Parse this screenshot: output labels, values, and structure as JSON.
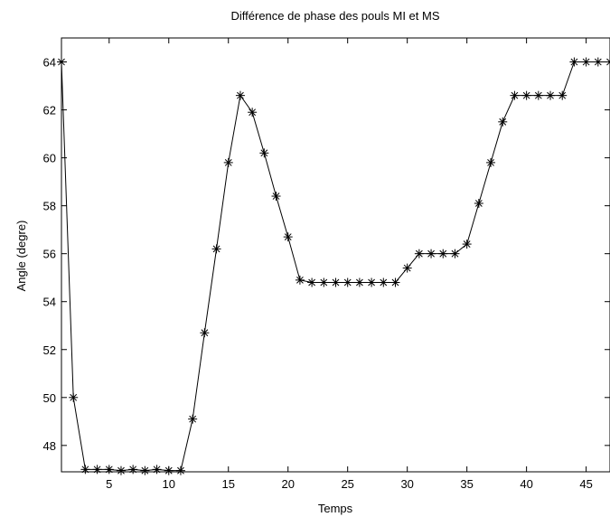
{
  "chart_data": {
    "type": "line",
    "title": "Différence de phase des pouls MI et MS",
    "xlabel": "Temps",
    "ylabel": "Angle (degre)",
    "xlim": [
      1,
      47
    ],
    "ylim": [
      46.9,
      65
    ],
    "xticks": [
      5,
      10,
      15,
      20,
      25,
      30,
      35,
      40,
      45
    ],
    "yticks": [
      48,
      50,
      52,
      54,
      56,
      58,
      60,
      62,
      64
    ],
    "grid": false,
    "marker": "*",
    "line_color": "#000000",
    "series": [
      {
        "x": [
          1,
          2,
          3,
          4,
          5,
          6,
          7,
          8,
          9,
          10,
          11,
          12,
          13,
          14,
          15,
          16,
          17,
          18,
          19,
          20,
          21,
          22,
          23,
          24,
          25,
          26,
          27,
          28,
          29,
          30,
          31,
          32,
          33,
          34,
          35,
          36,
          37,
          38,
          39,
          40,
          41,
          42,
          43,
          44,
          45,
          46,
          47
        ],
        "values": [
          64.0,
          50.0,
          47.0,
          47.0,
          47.0,
          46.95,
          47.0,
          46.95,
          47.0,
          46.95,
          46.95,
          49.1,
          52.7,
          56.2,
          59.8,
          62.6,
          61.9,
          60.2,
          58.4,
          56.7,
          54.9,
          54.8,
          54.8,
          54.8,
          54.8,
          54.8,
          54.8,
          54.8,
          54.8,
          55.4,
          56.0,
          56.0,
          56.0,
          56.0,
          56.4,
          58.1,
          59.8,
          61.5,
          62.6,
          62.6,
          62.6,
          62.6,
          62.6,
          64.0,
          64.0,
          64.0,
          64.0
        ]
      }
    ]
  }
}
